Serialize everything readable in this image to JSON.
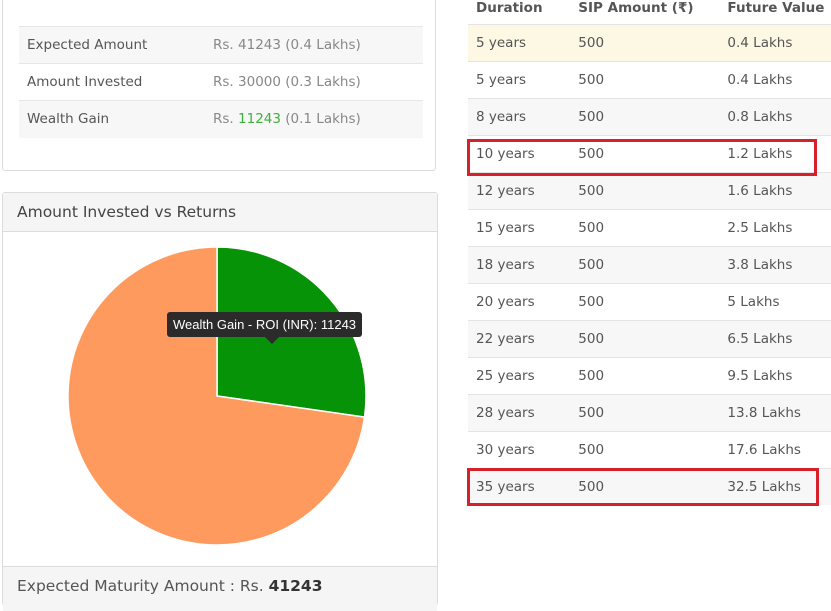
{
  "summary": {
    "rows": [
      {
        "label": "Expected Amount",
        "prefix": "Rs.",
        "amount": "41243",
        "note": "(0.4 Lakhs)"
      },
      {
        "label": "Amount Invested",
        "prefix": "Rs.",
        "amount": "30000",
        "note": "(0.3 Lakhs)"
      },
      {
        "label": "Wealth Gain",
        "prefix": "Rs.",
        "amount": "11243",
        "note": "(0.1 Lakhs)"
      }
    ]
  },
  "chart": {
    "title": "Amount Invested vs Returns",
    "tooltip": "Wealth Gain - ROI (INR): 11243",
    "footer_label": "Expected Maturity Amount : Rs.",
    "footer_value": "41243"
  },
  "chart_data": {
    "type": "pie",
    "slices": [
      {
        "value": 11243,
        "color": "#079307"
      },
      {
        "value": 30000,
        "color": "#fe9a5e"
      }
    ]
  },
  "table": {
    "headers": [
      "Duration",
      "SIP Amount (₹)",
      "Future Value"
    ],
    "rows": [
      [
        "5 years",
        "500",
        "0.4 Lakhs"
      ],
      [
        "5 years",
        "500",
        "0.4 Lakhs"
      ],
      [
        "8 years",
        "500",
        "0.8 Lakhs"
      ],
      [
        "10 years",
        "500",
        "1.2 Lakhs"
      ],
      [
        "12 years",
        "500",
        "1.6 Lakhs"
      ],
      [
        "15 years",
        "500",
        "2.5 Lakhs"
      ],
      [
        "18 years",
        "500",
        "3.8 Lakhs"
      ],
      [
        "20 years",
        "500",
        "5 Lakhs"
      ],
      [
        "22 years",
        "500",
        "6.5 Lakhs"
      ],
      [
        "25 years",
        "500",
        "9.5 Lakhs"
      ],
      [
        "28 years",
        "500",
        "13.8 Lakhs"
      ],
      [
        "30 years",
        "500",
        "17.6 Lakhs"
      ],
      [
        "35 years",
        "500",
        "32.5 Lakhs"
      ]
    ],
    "highlight_color": "#d6202a"
  }
}
